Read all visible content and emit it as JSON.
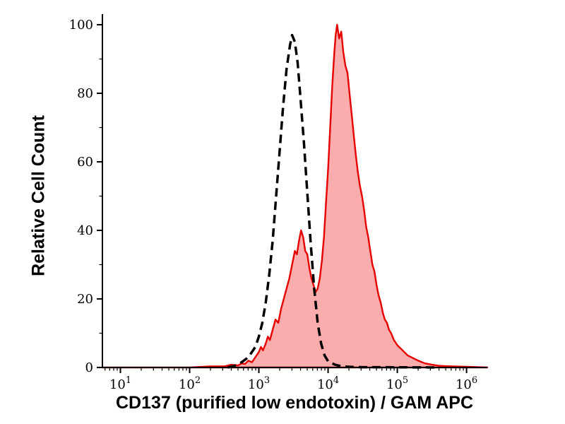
{
  "chart_data": {
    "type": "area",
    "subtype": "flow-cytometry-overlay-histogram",
    "title": "",
    "xlabel": "CD137 (purified low endotoxin) / GAM APC",
    "ylabel": "Relative Cell Count",
    "x_scale": "log10",
    "x_log_range": [
      0.74,
      6.3
    ],
    "y_range": [
      0,
      100
    ],
    "x_ticks": [
      {
        "log": 1,
        "base": "10",
        "exp": "1"
      },
      {
        "log": 2,
        "base": "10",
        "exp": "2"
      },
      {
        "log": 3,
        "base": "10",
        "exp": "3"
      },
      {
        "log": 4,
        "base": "10",
        "exp": "4"
      },
      {
        "log": 5,
        "base": "10",
        "exp": "5"
      },
      {
        "log": 6,
        "base": "10",
        "exp": "6"
      }
    ],
    "y_ticks": [
      0,
      20,
      40,
      60,
      80,
      100
    ],
    "grid": false,
    "legend": "none",
    "colors": {
      "axis": "#000000",
      "sample_stroke": "#e60000",
      "sample_fill": "#f8696b",
      "sample_fill_opacity": 0.55,
      "control_stroke": "#000000"
    },
    "series": [
      {
        "id": "sample-red-filled",
        "style": "filled-solid",
        "peaks": [
          {
            "x_log": 3.61,
            "y": 40
          },
          {
            "x_log": 4.13,
            "y": 100
          }
        ],
        "points": [
          [
            0.74,
            0
          ],
          [
            1.5,
            0
          ],
          [
            2.0,
            0
          ],
          [
            2.3,
            0.3
          ],
          [
            2.5,
            0.3
          ],
          [
            2.6,
            0.8
          ],
          [
            2.7,
            0.6
          ],
          [
            2.75,
            1.2
          ],
          [
            2.8,
            1.0
          ],
          [
            2.85,
            2.0
          ],
          [
            2.9,
            1.5
          ],
          [
            2.95,
            3.0
          ],
          [
            3.0,
            4.5
          ],
          [
            3.03,
            6
          ],
          [
            3.06,
            5
          ],
          [
            3.1,
            7
          ],
          [
            3.13,
            9
          ],
          [
            3.16,
            8
          ],
          [
            3.2,
            11
          ],
          [
            3.24,
            14
          ],
          [
            3.28,
            13
          ],
          [
            3.32,
            17
          ],
          [
            3.36,
            20
          ],
          [
            3.4,
            23
          ],
          [
            3.44,
            26
          ],
          [
            3.48,
            30
          ],
          [
            3.52,
            34
          ],
          [
            3.55,
            33
          ],
          [
            3.58,
            37
          ],
          [
            3.61,
            40
          ],
          [
            3.64,
            38
          ],
          [
            3.67,
            34
          ],
          [
            3.7,
            33
          ],
          [
            3.73,
            29
          ],
          [
            3.76,
            26
          ],
          [
            3.79,
            24
          ],
          [
            3.82,
            22
          ],
          [
            3.85,
            23
          ],
          [
            3.88,
            26
          ],
          [
            3.91,
            31
          ],
          [
            3.94,
            38
          ],
          [
            3.97,
            48
          ],
          [
            4.0,
            58
          ],
          [
            4.03,
            70
          ],
          [
            4.06,
            82
          ],
          [
            4.09,
            92
          ],
          [
            4.11,
            97
          ],
          [
            4.13,
            100
          ],
          [
            4.16,
            96
          ],
          [
            4.19,
            98
          ],
          [
            4.22,
            92
          ],
          [
            4.25,
            88
          ],
          [
            4.28,
            86
          ],
          [
            4.31,
            80
          ],
          [
            4.34,
            74
          ],
          [
            4.37,
            68
          ],
          [
            4.4,
            62
          ],
          [
            4.43,
            57
          ],
          [
            4.46,
            53
          ],
          [
            4.49,
            50
          ],
          [
            4.52,
            46
          ],
          [
            4.55,
            41
          ],
          [
            4.58,
            38
          ],
          [
            4.61,
            34
          ],
          [
            4.64,
            30
          ],
          [
            4.67,
            28
          ],
          [
            4.7,
            24
          ],
          [
            4.73,
            21
          ],
          [
            4.76,
            19
          ],
          [
            4.79,
            16
          ],
          [
            4.82,
            14
          ],
          [
            4.85,
            13
          ],
          [
            4.88,
            11
          ],
          [
            4.91,
            10
          ],
          [
            4.95,
            8
          ],
          [
            5.0,
            6.5
          ],
          [
            5.05,
            5.5
          ],
          [
            5.1,
            4.5
          ],
          [
            5.15,
            3.5
          ],
          [
            5.2,
            3
          ],
          [
            5.3,
            2
          ],
          [
            5.4,
            1.2
          ],
          [
            5.5,
            0.8
          ],
          [
            5.6,
            0.5
          ],
          [
            5.8,
            0.3
          ],
          [
            6.0,
            0.2
          ],
          [
            6.3,
            0
          ]
        ]
      },
      {
        "id": "control-black-dashed",
        "style": "dashed-line",
        "peaks": [
          {
            "x_log": 3.48,
            "y": 97
          }
        ],
        "points": [
          [
            2.55,
            0
          ],
          [
            2.65,
            0.5
          ],
          [
            2.75,
            1.5
          ],
          [
            2.85,
            3
          ],
          [
            2.95,
            6
          ],
          [
            3.0,
            9
          ],
          [
            3.05,
            13
          ],
          [
            3.1,
            19
          ],
          [
            3.15,
            27
          ],
          [
            3.2,
            37
          ],
          [
            3.25,
            50
          ],
          [
            3.3,
            63
          ],
          [
            3.35,
            76
          ],
          [
            3.4,
            87
          ],
          [
            3.45,
            94
          ],
          [
            3.48,
            97
          ],
          [
            3.52,
            95
          ],
          [
            3.56,
            89
          ],
          [
            3.6,
            79
          ],
          [
            3.65,
            66
          ],
          [
            3.7,
            51
          ],
          [
            3.75,
            36
          ],
          [
            3.8,
            23
          ],
          [
            3.85,
            13
          ],
          [
            3.9,
            7
          ],
          [
            3.95,
            3.5
          ],
          [
            4.0,
            1.8
          ],
          [
            4.1,
            0.8
          ],
          [
            4.2,
            0.3
          ],
          [
            4.4,
            0.1
          ],
          [
            5.6,
            0
          ]
        ]
      }
    ]
  }
}
